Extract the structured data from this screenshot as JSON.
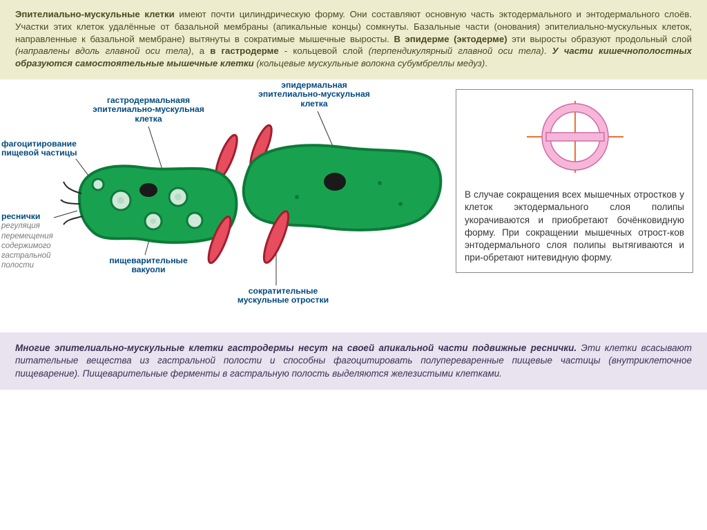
{
  "top": {
    "p1_a": "Эпителиально-мускульные клетки",
    "p1_b": " имеют почти цилиндрическую форму. Они составляют основную часть эктодермального и энтодермального слоёв. Участки этих клеток удалённые от базальной мембраны (апикальные концы) сомкнуты. Базальные части (онования) эпителиально-мускульных клеток, направленные к базальной мембране) вытянуты в сократимые мышечные выросты. ",
    "p1_c": "В эпидерме (эктодерме)",
    "p1_d": " эти выросты образуют продольный слой ",
    "p1_e": "(направлены вдоль главной оси тела)",
    "p1_f": ", а ",
    "p1_g": "в гастродерме",
    "p1_h": " - кольцевой слой ",
    "p1_i": "(перпендикулярный главной оси тела)",
    "p1_j": ". ",
    "p1_k": "У части кишечнополостных образуются самостоятельные мышечные клетки ",
    "p1_l": "(кольцевые мускульные волокна субумбреллы медуз)",
    "p1_m": "."
  },
  "labels": {
    "epi_title": "эпидермальная\nэпителиально-мускульная\nклетка",
    "gastro_title": "гастродермальнаяя\nэпителиально-мускульная\nклетка",
    "phago": "фагоцитирование\nпищевой частицы",
    "cilia": "реснички",
    "cilia_sub": "регуляция\nперемещения\nсодержимого\nгастральной\nполости",
    "vacuoles": "пищеварительные\nвакуоли",
    "processes": "сократительные\nмускульные отростки",
    "nucleus": "ядро"
  },
  "right": {
    "text": "В случае сокращения всех мышечных отростков у клеток эктодермального слоя полипы укорачиваются и приобретают бочёнковидную форму. При сокращении мышечных отрост-ков энтодермального слоя полипы вытягиваются и при-обретают нитевидную форму."
  },
  "bottom": {
    "b1": "Многие эпителиально-мускульные клетки гастродермы несут на своей апикальной части подвижные реснички.",
    "b2": " Эти клетки всасывают питательные вещества из гастральной полости и способны фагоцитировать полупереваренные пищевые частицы (внутриклеточное пищеварение). Пищеварительные ферменты в гастральную полость выделяются железистыми клетками."
  },
  "colors": {
    "cell_green": "#18a24f",
    "cell_green_dark": "#0d7a39",
    "rod_fill": "#e84c5f",
    "rod_edge": "#9e1f2f",
    "vacuole": "#cfe9d8",
    "nucleus": "#1a1a1a",
    "cilia_stroke": "#2a2a2a",
    "symbol_ring": "#f6b6d8",
    "symbol_ring_edge": "#d06aa8",
    "symbol_cross": "#e8722c"
  }
}
